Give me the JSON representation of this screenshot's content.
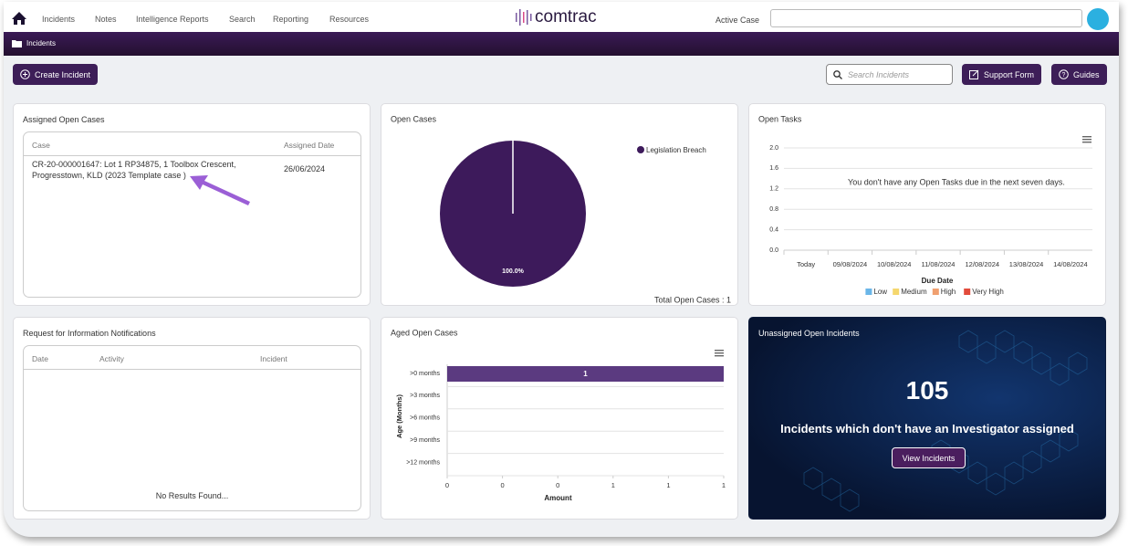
{
  "nav": {
    "items": [
      "Incidents",
      "Notes",
      "Intelligence Reports",
      "Search",
      "Reporting",
      "Resources"
    ],
    "logo": "comtrac",
    "active_case_label": "Active Case"
  },
  "breadcrumb": "Incidents",
  "toolbar": {
    "create": "Create Incident",
    "search_placeholder": "Search Incidents",
    "support": "Support Form",
    "guides": "Guides"
  },
  "assigned": {
    "title": "Assigned Open Cases",
    "headers": [
      "Case",
      "Assigned Date"
    ],
    "rows": [
      [
        "CR-20-000001647: Lot 1 RP34875, 1 Toolbox Crescent, Progresstown, KLD (2023 Template case )",
        "26/06/2024"
      ]
    ]
  },
  "rfi": {
    "title": "Request for Information Notifications",
    "headers": [
      "Date",
      "Activity",
      "Incident"
    ],
    "empty": "No Results Found..."
  },
  "unassigned": {
    "title": "Unassigned Open Incidents",
    "count": "105",
    "text": "Incidents which don't have an Investigator assigned",
    "button": "View Incidents"
  },
  "chart_data": [
    {
      "type": "pie",
      "title": "Open Cases",
      "categories": [
        "Legislation Breach"
      ],
      "values": [
        100
      ],
      "value_labels": [
        "100.0%"
      ],
      "color": "#3d1a5b",
      "legend": "top-right",
      "footer": "Total Open Cases : 1"
    },
    {
      "type": "bar",
      "title": "Open Tasks",
      "message": "You don't have any Open Tasks due in the next seven days.",
      "categories": [
        "Today",
        "09/08/2024",
        "10/08/2024",
        "11/08/2024",
        "12/08/2024",
        "13/08/2024",
        "14/08/2024"
      ],
      "series": [
        {
          "name": "Low",
          "color": "#6ab6e8",
          "values": [
            0,
            0,
            0,
            0,
            0,
            0,
            0
          ]
        },
        {
          "name": "Medium",
          "color": "#f5d76e",
          "values": [
            0,
            0,
            0,
            0,
            0,
            0,
            0
          ]
        },
        {
          "name": "High",
          "color": "#f0a070",
          "values": [
            0,
            0,
            0,
            0,
            0,
            0,
            0
          ]
        },
        {
          "name": "Very High",
          "color": "#e24b3b",
          "values": [
            0,
            0,
            0,
            0,
            0,
            0,
            0
          ]
        }
      ],
      "x_label": "Due Date",
      "ylim": [
        0,
        2
      ],
      "yticks": [
        {
          "value": 0,
          "label": "0.0"
        },
        {
          "value": 0.4,
          "label": "0.4"
        },
        {
          "value": 0.8,
          "label": "0.8"
        },
        {
          "value": 1.2,
          "label": "1.2"
        },
        {
          "value": 1.6,
          "label": "1.6"
        },
        {
          "value": 2,
          "label": "2.0"
        }
      ],
      "grid": true,
      "legend": "bottom"
    },
    {
      "type": "hbar",
      "title": "Aged Open Cases",
      "categories": [
        ">0 months",
        ">3 months",
        ">6 months",
        ">9 months",
        ">12 months"
      ],
      "values": [
        1,
        0,
        0,
        0,
        0
      ],
      "color": "#5b3a80",
      "x_label": "Amount",
      "y_label": "Age (Months)",
      "xlim": [
        0,
        1
      ],
      "xticks": [
        0,
        {
          "value": 0.2,
          "label": "0"
        },
        {
          "value": 0.4,
          "label": "0"
        },
        {
          "value": 0.6,
          "label": "1"
        },
        {
          "value": 0.8,
          "label": "1"
        },
        1
      ],
      "grid": true
    }
  ]
}
